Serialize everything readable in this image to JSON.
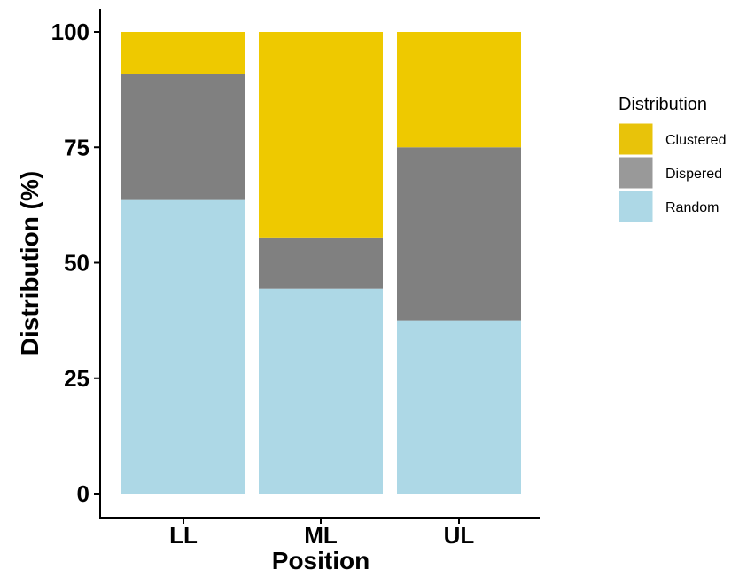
{
  "chart_data": {
    "type": "bar",
    "stacked": true,
    "categories": [
      "LL",
      "ML",
      "UL"
    ],
    "series": [
      {
        "name": "Random",
        "values": [
          63.6,
          44.4,
          37.5
        ],
        "color": "#ADD8E6"
      },
      {
        "name": "Dispered",
        "values": [
          27.3,
          11.1,
          37.5
        ],
        "color": "#808080"
      },
      {
        "name": "Clustered",
        "values": [
          9.1,
          44.5,
          25.0
        ],
        "color": "#EEC900"
      }
    ],
    "legend_order": [
      "Clustered",
      "Dispered",
      "Random"
    ],
    "legend_swatch_colors": {
      "Clustered": "#E8C30A",
      "Dispered": "#999999",
      "Random": "#ADD8E6"
    },
    "xlabel": "Position",
    "ylabel": "Distribution (%)",
    "ylim": [
      0,
      100
    ],
    "yticks": [
      0,
      25,
      50,
      75,
      100
    ],
    "legend_title": "Distribution",
    "legend_position": "right",
    "grid": false
  }
}
